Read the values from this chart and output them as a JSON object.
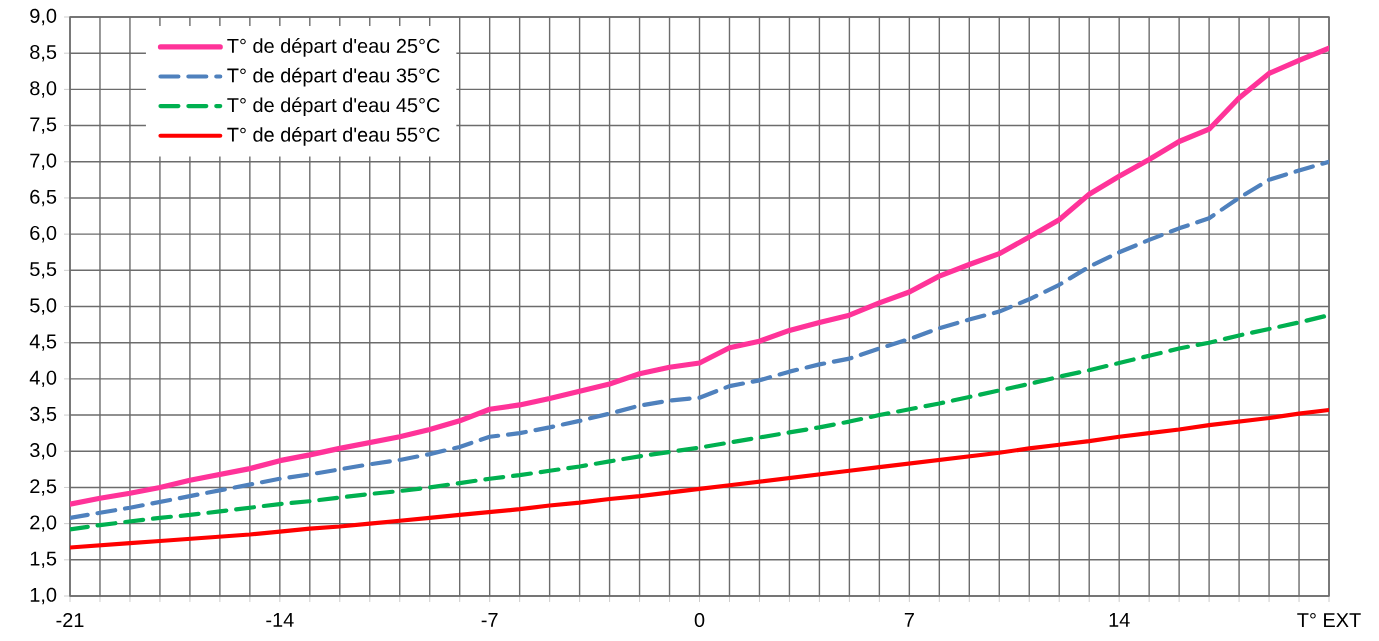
{
  "chart_data": {
    "type": "line",
    "x": [
      -21,
      -20,
      -19,
      -18,
      -17,
      -16,
      -15,
      -14,
      -13,
      -12,
      -11,
      -10,
      -9,
      -8,
      -7,
      -6,
      -5,
      -4,
      -3,
      -2,
      -1,
      0,
      1,
      2,
      3,
      4,
      5,
      6,
      7,
      8,
      9,
      10,
      11,
      12,
      13,
      14,
      15,
      16,
      17,
      18,
      19,
      20,
      21
    ],
    "series": [
      {
        "name": "T° de départ d'eau 25°C",
        "color": "#ff3399",
        "line_style": "solid",
        "values": [
          2.27,
          2.35,
          2.42,
          2.5,
          2.6,
          2.68,
          2.76,
          2.87,
          2.95,
          3.04,
          3.12,
          3.2,
          3.3,
          3.42,
          3.58,
          3.64,
          3.73,
          3.83,
          3.93,
          4.07,
          4.16,
          4.22,
          4.43,
          4.52,
          4.67,
          4.78,
          4.88,
          5.05,
          5.2,
          5.42,
          5.58,
          5.73,
          5.96,
          6.2,
          6.55,
          6.8,
          7.03,
          7.28,
          7.45,
          7.88,
          8.22,
          8.4,
          8.57
        ]
      },
      {
        "name": "T° de départ d'eau 35°C",
        "color": "#4f81bd",
        "line_style": "dashed",
        "values": [
          2.08,
          2.15,
          2.22,
          2.3,
          2.38,
          2.46,
          2.54,
          2.62,
          2.68,
          2.75,
          2.82,
          2.88,
          2.96,
          3.06,
          3.2,
          3.25,
          3.33,
          3.42,
          3.52,
          3.63,
          3.7,
          3.74,
          3.9,
          3.98,
          4.1,
          4.2,
          4.28,
          4.42,
          4.55,
          4.7,
          4.82,
          4.93,
          5.1,
          5.3,
          5.55,
          5.75,
          5.92,
          6.08,
          6.22,
          6.5,
          6.75,
          6.88,
          7.0
        ]
      },
      {
        "name": "T° de départ d'eau 45°C",
        "color": "#00b050",
        "line_style": "dashed",
        "values": [
          1.92,
          1.98,
          2.03,
          2.08,
          2.12,
          2.17,
          2.22,
          2.27,
          2.31,
          2.36,
          2.41,
          2.45,
          2.5,
          2.56,
          2.62,
          2.67,
          2.73,
          2.79,
          2.86,
          2.93,
          2.99,
          3.05,
          3.12,
          3.19,
          3.26,
          3.33,
          3.41,
          3.5,
          3.58,
          3.66,
          3.75,
          3.84,
          3.93,
          4.03,
          4.12,
          4.22,
          4.32,
          4.42,
          4.5,
          4.6,
          4.69,
          4.78,
          4.88
        ]
      },
      {
        "name": "T° de départ d'eau 55°C",
        "color": "#ff0000",
        "line_style": "solid",
        "values": [
          1.67,
          1.7,
          1.73,
          1.76,
          1.79,
          1.82,
          1.85,
          1.89,
          1.93,
          1.96,
          2.0,
          2.04,
          2.08,
          2.12,
          2.16,
          2.2,
          2.25,
          2.29,
          2.34,
          2.38,
          2.43,
          2.48,
          2.53,
          2.58,
          2.63,
          2.68,
          2.73,
          2.78,
          2.83,
          2.88,
          2.93,
          2.98,
          3.04,
          3.09,
          3.14,
          3.2,
          3.25,
          3.3,
          3.36,
          3.41,
          3.46,
          3.52,
          3.57
        ]
      }
    ],
    "xlim": [
      -21,
      21
    ],
    "xticks": [
      -21,
      {
        "value": -20,
        "label": null
      },
      {
        "value": -19,
        "label": null
      },
      {
        "value": -18,
        "label": null
      },
      {
        "value": -17,
        "label": null
      },
      {
        "value": -16,
        "label": null
      },
      {
        "value": -15,
        "label": null
      },
      -14,
      {
        "value": -13,
        "label": null
      },
      {
        "value": -12,
        "label": null
      },
      {
        "value": -11,
        "label": null
      },
      {
        "value": -10,
        "label": null
      },
      {
        "value": -9,
        "label": null
      },
      {
        "value": -8,
        "label": null
      },
      -7,
      {
        "value": -6,
        "label": null
      },
      {
        "value": -5,
        "label": null
      },
      {
        "value": -4,
        "label": null
      },
      {
        "value": -3,
        "label": null
      },
      {
        "value": -2,
        "label": null
      },
      {
        "value": -1,
        "label": null
      },
      0,
      {
        "value": 1,
        "label": null
      },
      {
        "value": 2,
        "label": null
      },
      {
        "value": 3,
        "label": null
      },
      {
        "value": 4,
        "label": null
      },
      {
        "value": 5,
        "label": null
      },
      {
        "value": 6,
        "label": null
      },
      7,
      {
        "value": 8,
        "label": null
      },
      {
        "value": 9,
        "label": null
      },
      {
        "value": 10,
        "label": null
      },
      {
        "value": 11,
        "label": null
      },
      {
        "value": 12,
        "label": null
      },
      {
        "value": 13,
        "label": null
      },
      14,
      {
        "value": 15,
        "label": null
      },
      {
        "value": 16,
        "label": null
      },
      {
        "value": 17,
        "label": null
      },
      {
        "value": 18,
        "label": null
      },
      {
        "value": 19,
        "label": null
      },
      {
        "value": 20,
        "label": null
      },
      {
        "value": 21,
        "label": "T° EXT"
      }
    ],
    "ylim": [
      1,
      9
    ],
    "yticks": [
      {
        "value": 1,
        "label": "1,0"
      },
      {
        "value": 1.5,
        "label": "1,5"
      },
      {
        "value": 2,
        "label": "2,0"
      },
      {
        "value": 2.5,
        "label": "2,5"
      },
      {
        "value": 3,
        "label": "3,0"
      },
      {
        "value": 3.5,
        "label": "3,5"
      },
      {
        "value": 4,
        "label": "4,0"
      },
      {
        "value": 4.5,
        "label": "4,5"
      },
      {
        "value": 5,
        "label": "5,0"
      },
      {
        "value": 5.5,
        "label": "5,5"
      },
      {
        "value": 6,
        "label": "6,0"
      },
      {
        "value": 6.5,
        "label": "6,5"
      },
      {
        "value": 7,
        "label": "7,0"
      },
      {
        "value": 7.5,
        "label": "7,5"
      },
      {
        "value": 8,
        "label": "8,0"
      },
      {
        "value": 8.5,
        "label": "8,5"
      },
      {
        "value": 9,
        "label": "9,0"
      }
    ],
    "grid": true,
    "legend": "top left",
    "marker": "none"
  }
}
